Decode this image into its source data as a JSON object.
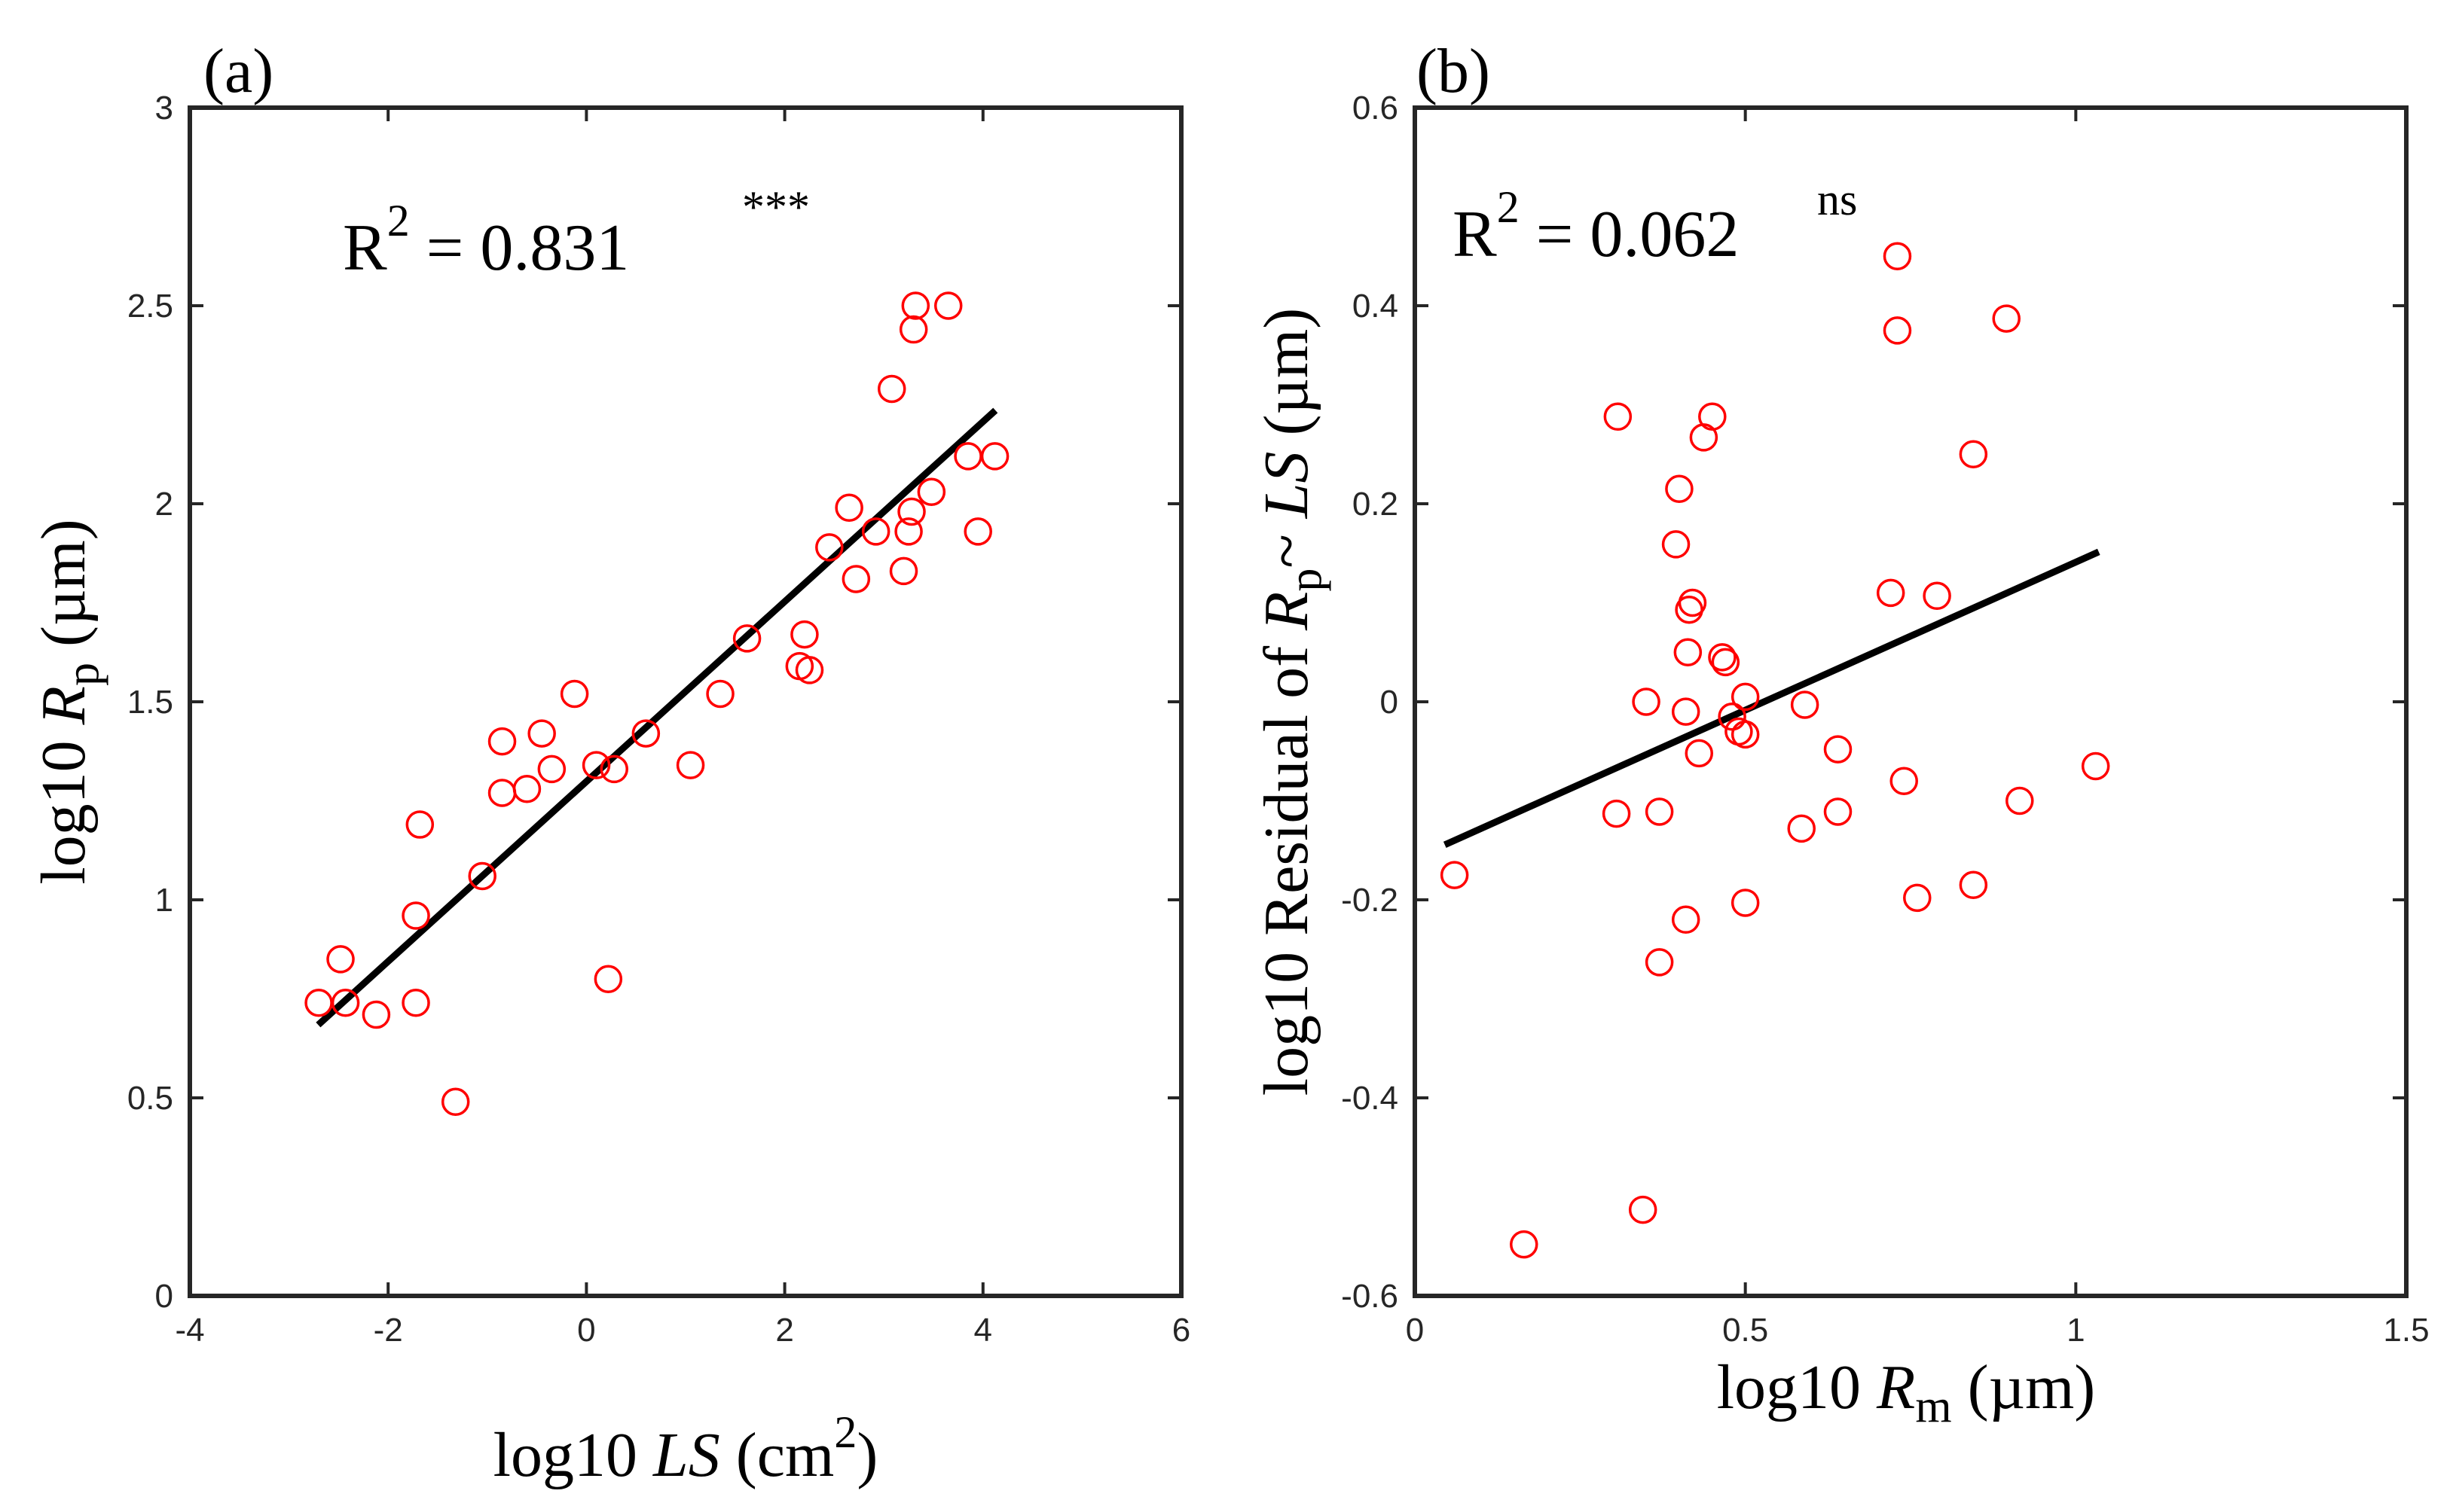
{
  "colors": {
    "marker": "#ff0000",
    "fit_line": "#000000",
    "axes": "#262626"
  },
  "chart_data": [
    {
      "type": "scatter",
      "panel_label": "(a)",
      "xlabel": {
        "prefix": "log10 ",
        "var": "LS",
        "unit_open": " (cm",
        "unit_sup": "2",
        "unit_close": ")"
      },
      "ylabel": {
        "prefix": "log10 ",
        "var": "R",
        "sub": "p",
        "unit": " (µm)"
      },
      "annotation": {
        "base": "R",
        "sup": "2",
        "rest": " = 0.831",
        "sig": "***"
      },
      "xlim": [
        -4,
        6
      ],
      "ylim": [
        0,
        3
      ],
      "xticks": [
        -4,
        -2,
        0,
        2,
        4,
        6
      ],
      "xtick_labels": [
        "-4",
        "-2",
        "0",
        "2",
        "4",
        "6"
      ],
      "yticks": [
        0,
        0.5,
        1,
        1.5,
        2,
        2.5,
        3
      ],
      "ytick_labels": [
        "0",
        "0.5",
        "1",
        "1.5",
        "2",
        "2.5",
        "3"
      ],
      "fit_line": {
        "x": [
          -2.68,
          4.1
        ],
        "y": [
          0.69,
          2.23
        ]
      },
      "points": [
        [
          -2.7,
          0.74
        ],
        [
          -2.48,
          0.85
        ],
        [
          -2.43,
          0.74
        ],
        [
          -2.12,
          0.71
        ],
        [
          -1.72,
          0.74
        ],
        [
          -1.72,
          0.96
        ],
        [
          -1.68,
          1.19
        ],
        [
          -1.32,
          0.49
        ],
        [
          -1.05,
          1.06
        ],
        [
          -0.85,
          1.27
        ],
        [
          -0.85,
          1.4
        ],
        [
          -0.6,
          1.28
        ],
        [
          -0.45,
          1.42
        ],
        [
          -0.35,
          1.33
        ],
        [
          -0.12,
          1.52
        ],
        [
          0.1,
          1.34
        ],
        [
          0.22,
          0.8
        ],
        [
          0.28,
          1.33
        ],
        [
          0.6,
          1.42
        ],
        [
          1.05,
          1.34
        ],
        [
          1.35,
          1.52
        ],
        [
          1.62,
          1.66
        ],
        [
          2.15,
          1.59
        ],
        [
          2.2,
          1.67
        ],
        [
          2.25,
          1.58
        ],
        [
          2.45,
          1.89
        ],
        [
          2.65,
          1.99
        ],
        [
          2.72,
          1.81
        ],
        [
          2.92,
          1.93
        ],
        [
          3.08,
          2.29
        ],
        [
          3.2,
          1.83
        ],
        [
          3.25,
          1.93
        ],
        [
          3.28,
          1.98
        ],
        [
          3.3,
          2.44
        ],
        [
          3.32,
          2.5
        ],
        [
          3.48,
          2.03
        ],
        [
          3.65,
          2.5
        ],
        [
          3.85,
          2.12
        ],
        [
          3.95,
          1.93
        ],
        [
          4.12,
          2.12
        ]
      ]
    },
    {
      "type": "scatter",
      "panel_label": "(b)",
      "xlabel": {
        "prefix": "log10 ",
        "var": "R",
        "sub": "m",
        "unit": " (µm)"
      },
      "ylabel": {
        "prefix": "log10 Residual of  ",
        "var": "R",
        "sub": "p",
        "tilde": "~ ",
        "var2": "LS",
        "unit": " (µm)"
      },
      "annotation": {
        "base": "R",
        "sup": "2",
        "rest": " = 0.062",
        "sig": "ns"
      },
      "xlim": [
        0,
        1.5
      ],
      "ylim": [
        -0.6,
        0.6
      ],
      "xticks": [
        0,
        0.5,
        1,
        1.5
      ],
      "xtick_labels": [
        "0",
        "0.5",
        "1",
        "1.5"
      ],
      "yticks": [
        -0.6,
        -0.4,
        -0.2,
        0,
        0.2,
        0.4,
        0.6
      ],
      "ytick_labels": [
        "-0.6",
        "-0.4",
        "-0.2",
        "0",
        "0.2",
        "0.4",
        "0.6"
      ],
      "fit_line": {
        "x": [
          0.05,
          1.03
        ],
        "y": [
          -0.143,
          0.15
        ]
      },
      "points": [
        [
          0.06,
          -0.175
        ],
        [
          0.165,
          -0.548
        ],
        [
          0.305,
          -0.113
        ],
        [
          0.307,
          0.288
        ],
        [
          0.345,
          -0.513
        ],
        [
          0.35,
          0.0
        ],
        [
          0.37,
          -0.111
        ],
        [
          0.37,
          -0.263
        ],
        [
          0.395,
          0.159
        ],
        [
          0.4,
          0.215
        ],
        [
          0.41,
          -0.01
        ],
        [
          0.41,
          -0.22
        ],
        [
          0.413,
          0.05
        ],
        [
          0.415,
          0.093
        ],
        [
          0.42,
          0.1
        ],
        [
          0.43,
          -0.052
        ],
        [
          0.437,
          0.267
        ],
        [
          0.45,
          0.288
        ],
        [
          0.465,
          0.045
        ],
        [
          0.47,
          0.04
        ],
        [
          0.48,
          -0.015
        ],
        [
          0.49,
          -0.03
        ],
        [
          0.5,
          -0.033
        ],
        [
          0.5,
          0.005
        ],
        [
          0.5,
          -0.203
        ],
        [
          0.585,
          -0.128
        ],
        [
          0.59,
          -0.003
        ],
        [
          0.64,
          -0.048
        ],
        [
          0.64,
          -0.111
        ],
        [
          0.72,
          0.11
        ],
        [
          0.73,
          0.45
        ],
        [
          0.73,
          0.375
        ],
        [
          0.74,
          -0.08
        ],
        [
          0.76,
          -0.198
        ],
        [
          0.79,
          0.107
        ],
        [
          0.845,
          0.25
        ],
        [
          0.845,
          -0.185
        ],
        [
          0.895,
          0.387
        ],
        [
          0.915,
          -0.1
        ],
        [
          1.03,
          -0.065
        ]
      ]
    }
  ]
}
